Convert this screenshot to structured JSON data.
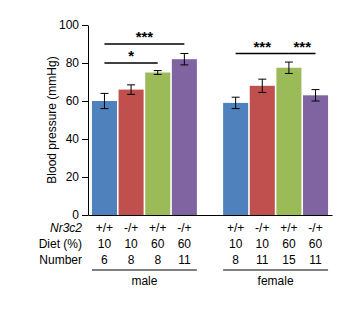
{
  "chart_data": {
    "type": "bar",
    "y_label": "Blood pressure (mmHg)",
    "ylim": [
      0,
      100
    ],
    "yticks": [
      0,
      20,
      40,
      60,
      80,
      100
    ],
    "row_labels": [
      "Nr3c2",
      "Diet (%)",
      "Number"
    ],
    "categories": [
      "+/+",
      "-/+",
      "+/+",
      "-/+"
    ],
    "diet": [
      10,
      10,
      60,
      60
    ],
    "colors": [
      "#4f81bd",
      "#c0504d",
      "#9bbb59",
      "#8064a2"
    ],
    "series": [
      {
        "name": "male",
        "values": [
          60,
          66,
          75,
          82
        ],
        "errors": [
          4,
          2.5,
          1,
          3
        ],
        "number": [
          6,
          8,
          8,
          11
        ],
        "significance": [
          {
            "from": 0,
            "to": 2,
            "y": 80,
            "label": "*"
          },
          {
            "from": 0,
            "to": 3,
            "y": 90,
            "label": "***"
          }
        ]
      },
      {
        "name": "female",
        "values": [
          59,
          68,
          77.5,
          63
        ],
        "errors": [
          3,
          3.5,
          3,
          3
        ],
        "number": [
          8,
          11,
          15,
          11
        ],
        "significance": [
          {
            "from": 0,
            "to": 2,
            "y": 85,
            "label": "***"
          },
          {
            "from": 2,
            "to": 3,
            "y": 85,
            "label": "***"
          }
        ]
      }
    ]
  }
}
